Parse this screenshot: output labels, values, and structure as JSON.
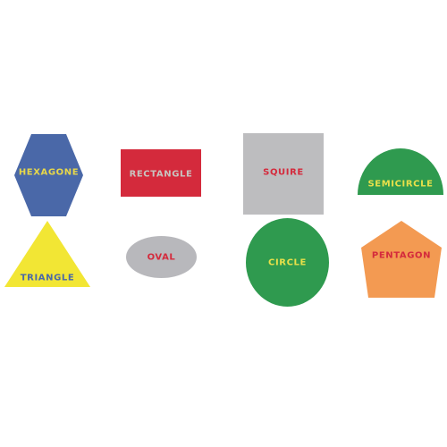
{
  "shapes": [
    {
      "label": "HEXAGONE",
      "fill": "#4a68a8",
      "text_color": "#e8d84a"
    },
    {
      "label": "RECTANGLE",
      "fill": "#d42a3c",
      "text_color": "#c8c4c0"
    },
    {
      "label": "SQUIRE",
      "fill": "#bdbdbf",
      "text_color": "#d42a3c"
    },
    {
      "label": "SEMICIRCLE",
      "fill": "#2f9a4f",
      "text_color": "#e8e04a"
    },
    {
      "label": "TRIANGLE",
      "fill": "#f2e634",
      "text_color": "#4a68a8"
    },
    {
      "label": "OVAL",
      "fill": "#b8b8bc",
      "text_color": "#d42a3c"
    },
    {
      "label": "CIRCLE",
      "fill": "#2f9a4f",
      "text_color": "#e8e04a"
    },
    {
      "label": "PENTAGON",
      "fill": "#f39a52",
      "text_color": "#d42a3c"
    }
  ]
}
